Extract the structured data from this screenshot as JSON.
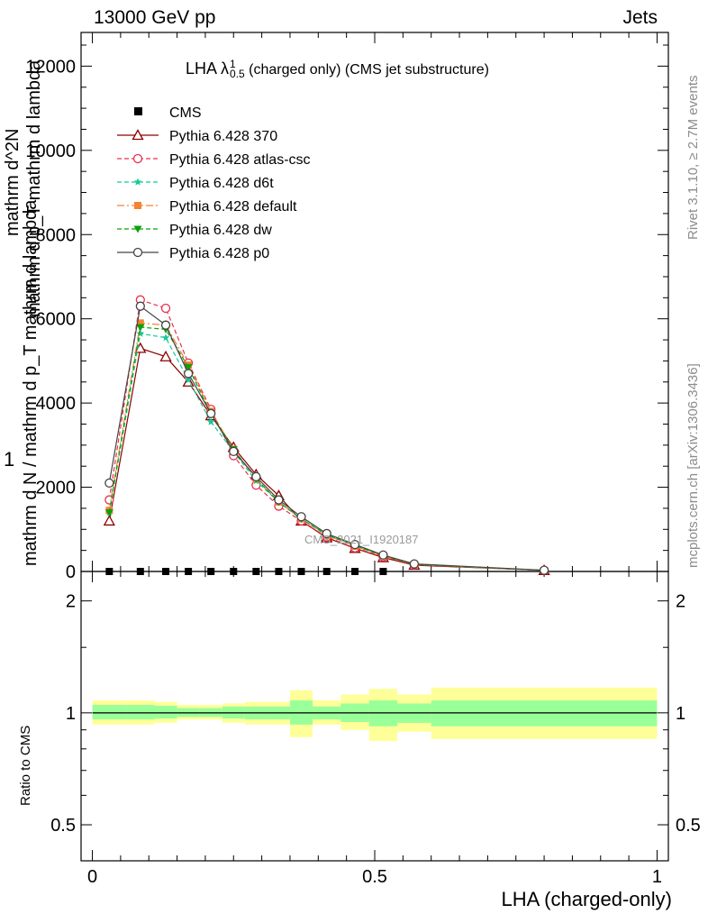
{
  "header": {
    "left": "13000 GeV pp",
    "right": "Jets"
  },
  "side_labels": {
    "rivet": "Rivet 3.1.10, ≥ 2.7M events",
    "mcplots": "mcplots.cern.ch [arXiv:1306.3436]"
  },
  "title": {
    "main": "LHA",
    "lambda": "λ",
    "sup": "1",
    "sub": "0.5",
    "rest": " (charged only) (CMS jet substructure)"
  },
  "watermark": "CMS_2021_I1920187",
  "colors": {
    "band_inner": "#99ff99",
    "band_outer": "#ffff99"
  },
  "chart_data": {
    "type": "line",
    "ylabel_top": "1",
    "ylabel_lines": [
      "mathrm d N / mathrm d p_T mathrm d lambda",
      "mathrm d^2N",
      "mathrm d p_T mathrm d lambda"
    ],
    "main_axis": {
      "ylim": [
        0,
        12800
      ],
      "yticks": [
        0,
        2000,
        4000,
        6000,
        8000,
        10000,
        12000
      ],
      "ytick_labels": [
        "0",
        "2000",
        "4000",
        "6000",
        "8000",
        "10000",
        "12000"
      ]
    },
    "ratio_axis": {
      "ylabel": "Ratio to CMS",
      "yscale": "log",
      "ylim": [
        0.4,
        2.4
      ],
      "yticks": [
        0.5,
        1,
        2
      ],
      "ytick_labels": [
        "0.5",
        "1",
        "2"
      ]
    },
    "x_axis": {
      "xlabel": "LHA (charged-only)",
      "xlim": [
        -0.02,
        1.02
      ],
      "xticks": [
        0,
        0.5,
        1
      ],
      "xtick_labels": [
        "0",
        "0.5",
        "1"
      ]
    },
    "cms_data": {
      "name": "CMS",
      "x": [
        0.03,
        0.085,
        0.13,
        0.17,
        0.21,
        0.25,
        0.29,
        0.33,
        0.37,
        0.415,
        0.465,
        0.515
      ],
      "y": [
        0,
        0,
        0,
        0,
        0,
        0,
        0,
        0,
        0,
        0,
        0,
        0
      ]
    },
    "ratio_bands": {
      "edges": [
        0.0,
        0.06,
        0.11,
        0.15,
        0.19,
        0.23,
        0.27,
        0.31,
        0.35,
        0.39,
        0.44,
        0.49,
        0.54,
        0.6,
        1.0
      ],
      "inner": [
        [
          0.96,
          1.05
        ],
        [
          0.96,
          1.05
        ],
        [
          0.965,
          1.045
        ],
        [
          0.975,
          1.03
        ],
        [
          0.975,
          1.03
        ],
        [
          0.965,
          1.04
        ],
        [
          0.96,
          1.04
        ],
        [
          0.96,
          1.04
        ],
        [
          0.93,
          1.08
        ],
        [
          0.96,
          1.04
        ],
        [
          0.945,
          1.06
        ],
        [
          0.92,
          1.08
        ],
        [
          0.94,
          1.06
        ],
        [
          0.92,
          1.08
        ]
      ],
      "outer": [
        [
          0.93,
          1.08
        ],
        [
          0.93,
          1.08
        ],
        [
          0.94,
          1.07
        ],
        [
          0.96,
          1.05
        ],
        [
          0.96,
          1.05
        ],
        [
          0.94,
          1.06
        ],
        [
          0.93,
          1.07
        ],
        [
          0.93,
          1.07
        ],
        [
          0.86,
          1.15
        ],
        [
          0.93,
          1.08
        ],
        [
          0.9,
          1.12
        ],
        [
          0.84,
          1.16
        ],
        [
          0.89,
          1.12
        ],
        [
          0.85,
          1.17
        ]
      ]
    },
    "series": [
      {
        "name": "Pythia 6.428 370",
        "color": "#8b0000",
        "marker": "triangle-open",
        "dash": "",
        "x": [
          0.03,
          0.085,
          0.13,
          0.17,
          0.21,
          0.25,
          0.29,
          0.33,
          0.37,
          0.415,
          0.465,
          0.515,
          0.57,
          0.8
        ],
        "y": [
          1200,
          5300,
          5100,
          4500,
          3700,
          2950,
          2300,
          1800,
          1200,
          800,
          550,
          330,
          150,
          25
        ]
      },
      {
        "name": "Pythia 6.428 atlas-csc",
        "color": "#e8304a",
        "marker": "circle-open",
        "dash": "5,3",
        "x": [
          0.03,
          0.085,
          0.13,
          0.17,
          0.21,
          0.25,
          0.29,
          0.33,
          0.37,
          0.415,
          0.465,
          0.515,
          0.57,
          0.8
        ],
        "y": [
          1700,
          6450,
          6250,
          4950,
          3850,
          2750,
          2050,
          1550,
          1200,
          820,
          560,
          350,
          160,
          25
        ]
      },
      {
        "name": "Pythia 6.428 d6t",
        "color": "#17c99b",
        "marker": "star",
        "dash": "5,3",
        "x": [
          0.03,
          0.085,
          0.13,
          0.17,
          0.21,
          0.25,
          0.29,
          0.33,
          0.37,
          0.415,
          0.465,
          0.515,
          0.57,
          0.8
        ],
        "y": [
          1400,
          5650,
          5550,
          4550,
          3550,
          2850,
          2150,
          1650,
          1250,
          880,
          620,
          380,
          170,
          25
        ]
      },
      {
        "name": "Pythia 6.428 default",
        "color": "#f58231",
        "marker": "square",
        "dash": "8,3,2,3",
        "x": [
          0.03,
          0.085,
          0.13,
          0.17,
          0.21,
          0.25,
          0.29,
          0.33,
          0.37,
          0.415,
          0.465,
          0.515,
          0.57,
          0.8
        ],
        "y": [
          1450,
          5900,
          5850,
          4900,
          3800,
          2900,
          2200,
          1650,
          1250,
          860,
          600,
          370,
          165,
          25
        ]
      },
      {
        "name": "Pythia 6.428 dw",
        "color": "#0ba10b",
        "marker": "triangle-down",
        "dash": "5,3",
        "x": [
          0.03,
          0.085,
          0.13,
          0.17,
          0.21,
          0.25,
          0.29,
          0.33,
          0.37,
          0.415,
          0.465,
          0.515,
          0.57,
          0.8
        ],
        "y": [
          1400,
          5800,
          5750,
          4850,
          3750,
          2900,
          2200,
          1650,
          1250,
          870,
          610,
          375,
          170,
          25
        ]
      },
      {
        "name": "Pythia 6.428 p0",
        "color": "#444444",
        "marker": "circle-open",
        "dash": "",
        "x": [
          0.03,
          0.085,
          0.13,
          0.17,
          0.21,
          0.25,
          0.29,
          0.33,
          0.37,
          0.415,
          0.465,
          0.515,
          0.57,
          0.8
        ],
        "y": [
          2100,
          6300,
          5850,
          4700,
          3750,
          2850,
          2250,
          1700,
          1300,
          900,
          640,
          390,
          180,
          30
        ]
      }
    ]
  }
}
